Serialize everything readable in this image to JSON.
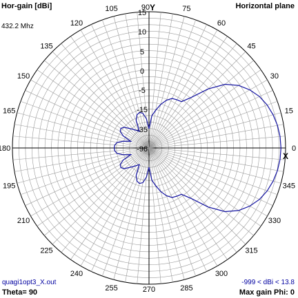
{
  "header": {
    "title": "Hor-gain [dBi]",
    "frequency": "432.2 Mhz",
    "plane": "Horizontal plane"
  },
  "footer": {
    "filename": "quagi1opt3_X.out",
    "theta": "Theta= 90",
    "gain_range": "-999 < dBi < 13.8",
    "max_gain": "Max gain Phi: 0"
  },
  "axis_markers": {
    "x": "X",
    "y": "Y"
  },
  "chart_data": {
    "type": "polar",
    "plane": "Horizontal plane",
    "angle_labels": [
      "0",
      "15",
      "30",
      "45",
      "60",
      "75",
      "90",
      "105",
      "120",
      "135",
      "150",
      "165",
      "180",
      "195",
      "210",
      "225",
      "240",
      "255",
      "270",
      "285",
      "300",
      "315",
      "330",
      "345"
    ],
    "radial_labels": [
      "15",
      "10",
      "5",
      "0",
      "-5",
      "-15",
      "-35",
      "-96"
    ],
    "radial_db": [
      15,
      10,
      5,
      0,
      -5,
      -15,
      -35,
      -96
    ],
    "max_gain_dbi": 13.8,
    "max_gain_phi": 0,
    "series": [
      {
        "color": "#1010a0",
        "points": [
          {
            "phi": 0,
            "dbi": 13.8
          },
          {
            "phi": 5,
            "dbi": 13.7
          },
          {
            "phi": 10,
            "dbi": 13.4
          },
          {
            "phi": 15,
            "dbi": 12.9
          },
          {
            "phi": 20,
            "dbi": 12.2
          },
          {
            "phi": 25,
            "dbi": 11.2
          },
          {
            "phi": 30,
            "dbi": 9.8
          },
          {
            "phi": 35,
            "dbi": 8.0
          },
          {
            "phi": 40,
            "dbi": 5.5
          },
          {
            "phi": 45,
            "dbi": 1.5
          },
          {
            "phi": 50,
            "dbi": -3.0
          },
          {
            "phi": 55,
            "dbi": -6.0
          },
          {
            "phi": 60,
            "dbi": -6.5
          },
          {
            "phi": 65,
            "dbi": -7.0
          },
          {
            "phi": 70,
            "dbi": -9.0
          },
          {
            "phi": 75,
            "dbi": -12.0
          },
          {
            "phi": 80,
            "dbi": -16.0
          },
          {
            "phi": 85,
            "dbi": -22.0
          },
          {
            "phi": 90,
            "dbi": -35.0
          },
          {
            "phi": 95,
            "dbi": -25.0
          },
          {
            "phi": 100,
            "dbi": -19.0
          },
          {
            "phi": 105,
            "dbi": -17.5
          },
          {
            "phi": 110,
            "dbi": -19.0
          },
          {
            "phi": 115,
            "dbi": -24.0
          },
          {
            "phi": 120,
            "dbi": -35.0
          },
          {
            "phi": 130,
            "dbi": -30.0
          },
          {
            "phi": 140,
            "dbi": -22.0
          },
          {
            "phi": 145,
            "dbi": -20.0
          },
          {
            "phi": 150,
            "dbi": -21.0
          },
          {
            "phi": 155,
            "dbi": -26.0
          },
          {
            "phi": 160,
            "dbi": -35.0
          },
          {
            "phi": 165,
            "dbi": -28.0
          },
          {
            "phi": 170,
            "dbi": -22.0
          },
          {
            "phi": 175,
            "dbi": -20.0
          },
          {
            "phi": 180,
            "dbi": -19.5
          },
          {
            "phi": 185,
            "dbi": -20.0
          },
          {
            "phi": 190,
            "dbi": -22.0
          },
          {
            "phi": 195,
            "dbi": -28.0
          },
          {
            "phi": 200,
            "dbi": -35.0
          },
          {
            "phi": 205,
            "dbi": -26.0
          },
          {
            "phi": 210,
            "dbi": -21.0
          },
          {
            "phi": 215,
            "dbi": -20.0
          },
          {
            "phi": 220,
            "dbi": -22.0
          },
          {
            "phi": 230,
            "dbi": -30.0
          },
          {
            "phi": 240,
            "dbi": -35.0
          },
          {
            "phi": 245,
            "dbi": -24.0
          },
          {
            "phi": 250,
            "dbi": -19.0
          },
          {
            "phi": 255,
            "dbi": -17.5
          },
          {
            "phi": 260,
            "dbi": -19.0
          },
          {
            "phi": 265,
            "dbi": -25.0
          },
          {
            "phi": 270,
            "dbi": -35.0
          },
          {
            "phi": 275,
            "dbi": -22.0
          },
          {
            "phi": 280,
            "dbi": -16.0
          },
          {
            "phi": 285,
            "dbi": -12.0
          },
          {
            "phi": 290,
            "dbi": -9.0
          },
          {
            "phi": 295,
            "dbi": -7.0
          },
          {
            "phi": 300,
            "dbi": -6.5
          },
          {
            "phi": 305,
            "dbi": -6.0
          },
          {
            "phi": 310,
            "dbi": -3.0
          },
          {
            "phi": 315,
            "dbi": 1.5
          },
          {
            "phi": 320,
            "dbi": 5.5
          },
          {
            "phi": 325,
            "dbi": 8.0
          },
          {
            "phi": 330,
            "dbi": 9.8
          },
          {
            "phi": 335,
            "dbi": 11.2
          },
          {
            "phi": 340,
            "dbi": 12.2
          },
          {
            "phi": 345,
            "dbi": 12.9
          },
          {
            "phi": 350,
            "dbi": 13.4
          },
          {
            "phi": 355,
            "dbi": 13.7
          },
          {
            "phi": 360,
            "dbi": 13.8
          }
        ]
      }
    ]
  }
}
